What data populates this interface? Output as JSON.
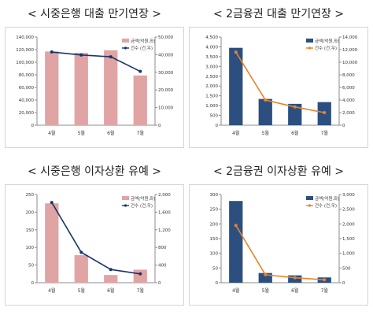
{
  "chart_data": [
    {
      "type": "bar",
      "title": "< 시중은행 대출 만기연장 >",
      "categories": [
        "4월",
        "5월",
        "6월",
        "7월"
      ],
      "series": [
        {
          "name": "금액(억원,좌)",
          "kind": "bar",
          "axis": "left",
          "values": [
            117000,
            115000,
            119000,
            79000
          ]
        },
        {
          "name": "건수 (건,우)",
          "kind": "line",
          "axis": "right",
          "values": [
            41500,
            39800,
            38800,
            30500
          ]
        }
      ],
      "ylim": [
        0,
        140000
      ],
      "yticks": [
        0,
        20000,
        40000,
        60000,
        80000,
        100000,
        120000,
        140000
      ],
      "ytick_labels": [
        "0",
        "20,000",
        "40,000",
        "60,000",
        "80,000",
        "100,000",
        "120,000",
        "140,000"
      ],
      "y2lim": [
        0,
        50000
      ],
      "y2ticks": [
        0,
        10000,
        20000,
        30000,
        40000,
        50000
      ],
      "y2tick_labels": [
        "0",
        "10,000",
        "20,000",
        "30,000",
        "40,000",
        "50,000"
      ],
      "legend": "top-right",
      "grid": false,
      "bar_color": "#e0a4a4",
      "line_color": "#17356b"
    },
    {
      "type": "bar",
      "title": "< 2금융권 대출 만기연장 >",
      "categories": [
        "4월",
        "5월",
        "6월",
        "7월"
      ],
      "series": [
        {
          "name": "금액(억원,좌)",
          "kind": "bar",
          "axis": "left",
          "values": [
            3950,
            1340,
            1090,
            1180
          ]
        },
        {
          "name": "건수 (건,우)",
          "kind": "line",
          "axis": "right",
          "values": [
            11600,
            4000,
            2900,
            2000
          ]
        }
      ],
      "ylim": [
        0,
        4500
      ],
      "yticks": [
        0,
        500,
        1000,
        1500,
        2000,
        2500,
        3000,
        3500,
        4000,
        4500
      ],
      "ytick_labels": [
        "0",
        "500",
        "1,000",
        "1,500",
        "2,000",
        "2,500",
        "3,000",
        "3,500",
        "4,000",
        "4,500"
      ],
      "y2lim": [
        0,
        14000
      ],
      "y2ticks": [
        0,
        2000,
        4000,
        6000,
        8000,
        10000,
        12000,
        14000
      ],
      "y2tick_labels": [
        "0",
        "2,000",
        "4,000",
        "6,000",
        "8,000",
        "10,000",
        "12,000",
        "14,000"
      ],
      "legend": "top-right",
      "grid": false,
      "bar_color": "#2c4f80",
      "line_color": "#e8832a"
    },
    {
      "type": "bar",
      "title": "< 시중은행 이자상환 유예 >",
      "categories": [
        "4월",
        "5월",
        "6월",
        "7월"
      ],
      "series": [
        {
          "name": "금액(억원,좌)",
          "kind": "bar",
          "axis": "left",
          "values": [
            225,
            78,
            22,
            37
          ]
        },
        {
          "name": "건수 (건,우)",
          "kind": "line",
          "axis": "right",
          "values": [
            1820,
            690,
            300,
            200
          ]
        }
      ],
      "ylim": [
        0,
        250
      ],
      "yticks": [
        0,
        50,
        100,
        150,
        200,
        250
      ],
      "ytick_labels": [
        "0",
        "50",
        "100",
        "150",
        "200",
        "250"
      ],
      "y2lim": [
        0,
        2000
      ],
      "y2ticks": [
        0,
        400,
        800,
        1200,
        1600,
        2000
      ],
      "y2tick_labels": [
        "0",
        "400",
        "800",
        "1,200",
        "1,600",
        "2,000"
      ],
      "legend": "top-right",
      "grid": false,
      "bar_color": "#e0a4a4",
      "line_color": "#17356b"
    },
    {
      "type": "bar",
      "title": "< 2금융권 이자상환 유예 >",
      "categories": [
        "4월",
        "5월",
        "6월",
        "7월"
      ],
      "series": [
        {
          "name": "금액(억원,좌)",
          "kind": "bar",
          "axis": "left",
          "values": [
            278,
            33,
            25,
            18
          ]
        },
        {
          "name": "건수 (건,우)",
          "kind": "line",
          "axis": "right",
          "values": [
            1950,
            270,
            170,
            100
          ]
        }
      ],
      "ylim": [
        0,
        300
      ],
      "yticks": [
        0,
        50,
        100,
        150,
        200,
        250,
        300
      ],
      "ytick_labels": [
        "0",
        "50",
        "100",
        "150",
        "200",
        "250",
        "300"
      ],
      "y2lim": [
        0,
        3000
      ],
      "y2ticks": [
        0,
        500,
        1000,
        1500,
        2000,
        2500,
        3000
      ],
      "y2tick_labels": [
        "0",
        "500",
        "1,000",
        "1,500",
        "2,000",
        "2,500",
        "3,000"
      ],
      "legend": "top-right",
      "grid": false,
      "bar_color": "#2c4f80",
      "line_color": "#e8832a"
    }
  ]
}
